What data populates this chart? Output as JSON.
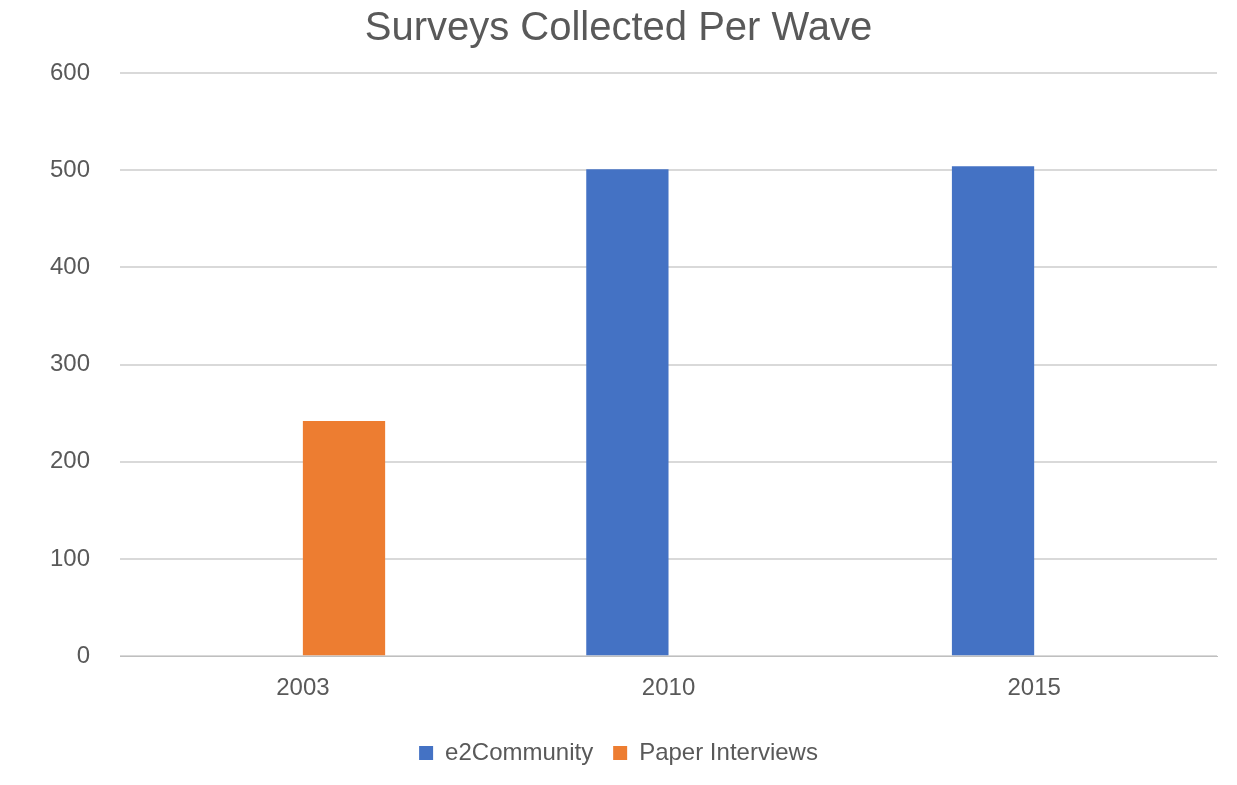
{
  "chart_data": {
    "type": "bar",
    "title": "Surveys Collected Per Wave",
    "categories": [
      "2003",
      "2010",
      "2015"
    ],
    "series": [
      {
        "name": "e2Community",
        "color": "#4472c4",
        "values": [
          null,
          501,
          504
        ]
      },
      {
        "name": "Paper Interviews",
        "color": "#ed7d31",
        "values": [
          242,
          null,
          null
        ]
      }
    ],
    "ylim": [
      0,
      600
    ],
    "yticks": [
      0,
      100,
      200,
      300,
      400,
      500,
      600
    ],
    "grid": "y",
    "legend": "bottom"
  }
}
